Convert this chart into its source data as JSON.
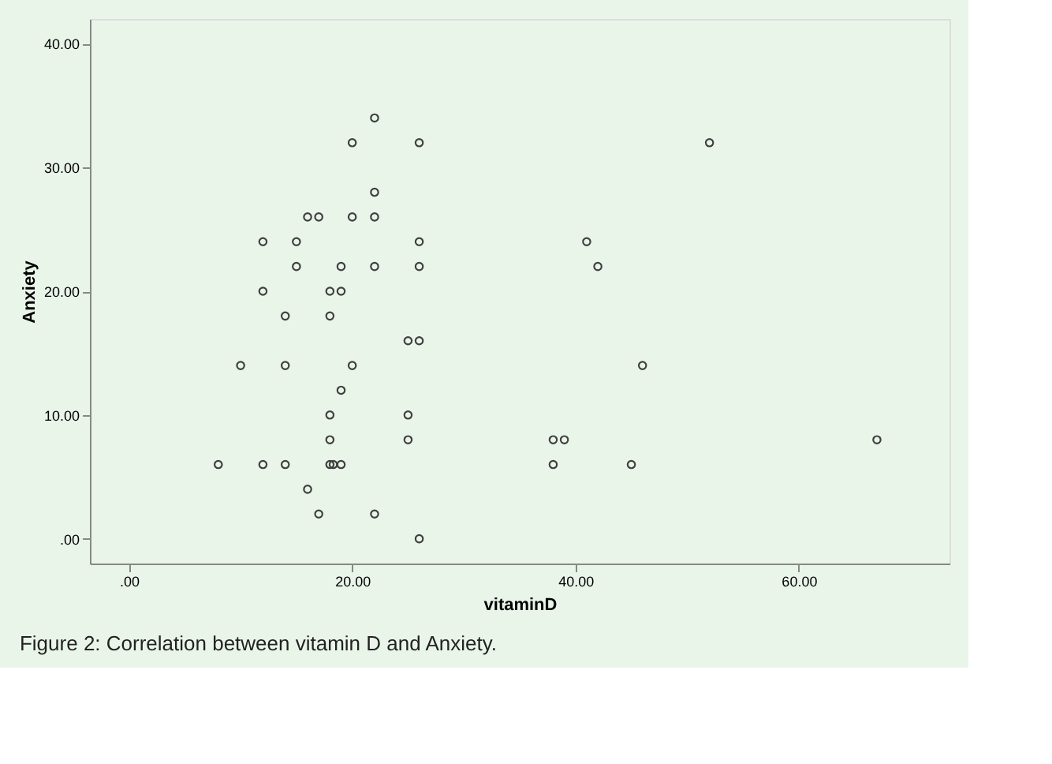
{
  "chart_data": {
    "type": "scatter",
    "xlabel": "vitaminD",
    "ylabel": "Anxiety",
    "x": [
      22,
      20,
      26,
      52,
      22,
      16,
      17,
      20,
      22,
      12,
      15,
      26,
      41,
      15,
      19,
      22,
      26,
      42,
      12,
      18,
      19,
      14,
      18,
      25,
      26,
      10,
      14,
      20,
      46,
      19,
      18,
      25,
      18,
      25,
      38,
      39,
      67,
      8,
      12,
      14,
      18,
      18.3,
      19,
      38,
      45,
      16,
      17,
      22,
      26
    ],
    "series": [
      {
        "color": "#404040",
        "values": [
          34,
          32,
          32,
          32,
          28,
          26,
          26,
          26,
          26,
          24,
          24,
          24,
          24,
          22,
          22,
          22,
          22,
          22,
          20,
          20,
          20,
          18,
          18,
          16,
          16,
          14,
          14,
          14,
          14,
          12,
          10,
          10,
          8,
          8,
          8,
          8,
          8,
          6,
          6,
          6,
          6,
          6,
          6,
          6,
          6,
          4,
          2,
          2,
          0
        ]
      }
    ],
    "xlim": [
      -3.5,
      73.5
    ],
    "ylim": [
      -2,
      42
    ],
    "xticks": [
      {
        "value": 0,
        "label": ".00"
      },
      {
        "value": 20,
        "label": "20.00"
      },
      {
        "value": 40,
        "label": "40.00"
      },
      {
        "value": 60,
        "label": "60.00"
      }
    ],
    "yticks": [
      {
        "value": 0,
        "label": ".00"
      },
      {
        "value": 10,
        "label": "10.00"
      },
      {
        "value": 20,
        "label": "20.00"
      },
      {
        "value": 30,
        "label": "30.00"
      },
      {
        "value": 40,
        "label": "40.00"
      }
    ],
    "marker": "circle",
    "grid": false,
    "annotations": [
      "Figure 2: Correlation between vitamin D and Anxiety."
    ]
  }
}
